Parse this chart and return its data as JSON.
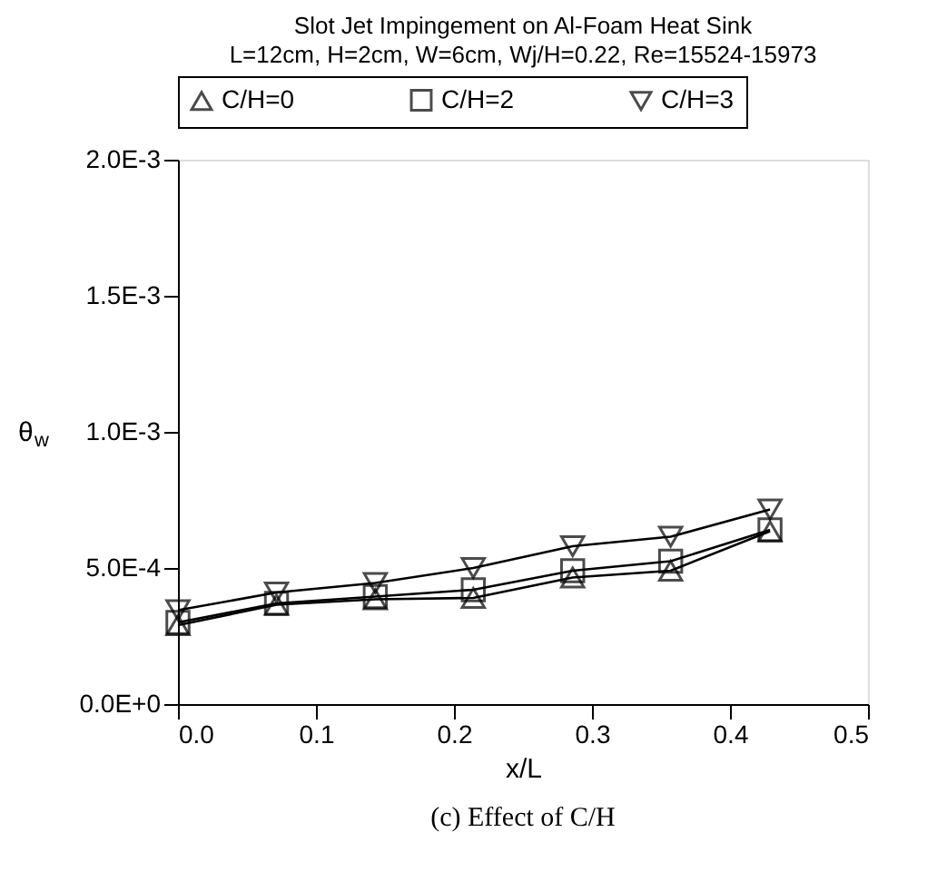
{
  "chart_data": {
    "type": "line",
    "title": "Slot Jet Impingement on Al-Foam Heat Sink",
    "subtitle": "L=12cm, H=2cm, W=6cm, Wj/H=0.22, Re=15524-15973",
    "xlabel": "x/L",
    "ylabel": "θ$_{w}$",
    "x": [
      0,
      0.0714,
      0.143,
      0.214,
      0.286,
      0.357,
      0.429
    ],
    "series": [
      {
        "name": "C/H=0",
        "color": "#000000",
        "marker": "triangle",
        "values": [
          0.00029,
          0.000365,
          0.000385,
          0.00039,
          0.000465,
          0.00049,
          0.000635
        ]
      },
      {
        "name": "C/H=2",
        "color": "#000000",
        "marker": "square",
        "values": [
          0.0003,
          0.00037,
          0.000395,
          0.00042,
          0.00049,
          0.000525,
          0.00064
        ]
      },
      {
        "name": "C/H=3",
        "color": "#000000",
        "marker": "triangle-down",
        "values": [
          0.000345,
          0.00041,
          0.000445,
          0.0005,
          0.00058,
          0.000615,
          0.000715
        ]
      }
    ],
    "xlim": [
      0,
      0.5
    ],
    "xticks": [
      {
        "value": 0,
        "label": "0.0"
      },
      0.1,
      0.2,
      0.3,
      0.4,
      0.5
    ],
    "ylim": [
      0,
      0.002
    ],
    "yticks": [
      {
        "value": 0,
        "label": "0.0E+0"
      },
      {
        "value": 0.0005,
        "label": "5.0E-4"
      },
      {
        "value": 0.001,
        "label": "1.0E-3"
      },
      {
        "value": 0.0015,
        "label": "1.5E-3"
      },
      {
        "value": 0.002,
        "label": "2.0E-3"
      }
    ],
    "grid": false,
    "legend": "top",
    "line_style": "solid",
    "annotations": [
      "(c) Effect of C/H"
    ]
  }
}
